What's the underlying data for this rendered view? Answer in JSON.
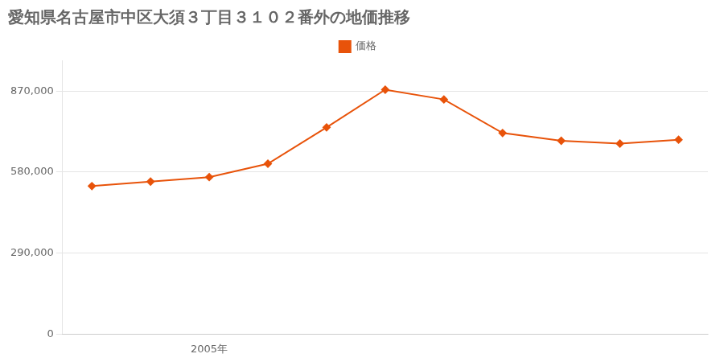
{
  "chart_data": {
    "type": "line",
    "title": "愛知県名古屋市中区大須３丁目３１０２番外の地価推移",
    "x": [
      2003,
      2004,
      2005,
      2006,
      2007,
      2008,
      2009,
      2010,
      2011,
      2012,
      2013
    ],
    "series": [
      {
        "name": "価格",
        "color": "#e8530a",
        "marker": "diamond",
        "values": [
          530000,
          546000,
          562000,
          610000,
          740000,
          875000,
          840000,
          720000,
          692000,
          682000,
          696000
        ]
      }
    ],
    "xlim": [
      2002.5,
      2013.5
    ],
    "xticks": [
      {
        "value": 2005,
        "label": "2005年"
      }
    ],
    "ylim": [
      0,
      980000
    ],
    "yticks": [
      0,
      {
        "value": 290000,
        "label": "290,000"
      },
      {
        "value": 580000,
        "label": "580,000"
      },
      {
        "value": 870000,
        "label": "870,000"
      }
    ],
    "grid": "y",
    "legend": "top"
  }
}
